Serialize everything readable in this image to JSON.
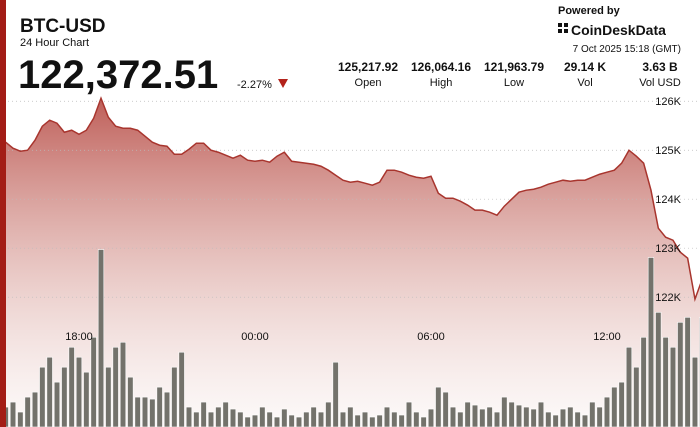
{
  "header": {
    "title": "BTC-USD",
    "subtitle": "24 Hour Chart",
    "price": "122,372.51",
    "change": "-2.27%",
    "powered_by": "Powered by",
    "brand": "CoinDeskData",
    "timestamp": "7 Oct 2025 15:18 (GMT)"
  },
  "stats": [
    {
      "value": "125,217.92",
      "label": "Open"
    },
    {
      "value": "126,064.16",
      "label": "High"
    },
    {
      "value": "121,963.79",
      "label": "Low"
    },
    {
      "value": "29.14 K",
      "label": "Vol"
    },
    {
      "value": "3.63 B",
      "label": "Vol USD"
    }
  ],
  "chart_data": {
    "type": "area",
    "color": "#a8352e",
    "categories": [
      null,
      null,
      null,
      null,
      null,
      null,
      null,
      null,
      null,
      null,
      "18:00",
      null,
      null,
      null,
      null,
      null,
      null,
      null,
      null,
      null,
      null,
      null,
      null,
      null,
      null,
      null,
      null,
      null,
      null,
      null,
      null,
      null,
      null,
      null,
      "00:00",
      null,
      null,
      null,
      null,
      null,
      null,
      null,
      null,
      null,
      null,
      null,
      null,
      null,
      null,
      null,
      null,
      null,
      null,
      null,
      null,
      null,
      null,
      null,
      "06:00",
      null,
      null,
      null,
      null,
      null,
      null,
      null,
      null,
      null,
      null,
      null,
      null,
      null,
      null,
      null,
      null,
      null,
      null,
      null,
      null,
      null,
      null,
      null,
      "12:00",
      null,
      null,
      null,
      null,
      null,
      null,
      null,
      null,
      null,
      null,
      null,
      null,
      null
    ],
    "values": [
      125163,
      125041,
      124980,
      125000,
      125204,
      125490,
      125612,
      125551,
      125367,
      125408,
      125326,
      125408,
      125653,
      126060,
      125673,
      125490,
      125449,
      125449,
      125408,
      125286,
      125163,
      125102,
      125082,
      124918,
      124918,
      125020,
      125143,
      125143,
      125000,
      124959,
      124898,
      124837,
      124898,
      124796,
      124775,
      124796,
      124755,
      124878,
      124959,
      124775,
      124755,
      124735,
      124714,
      124673,
      124592,
      124490,
      124388,
      124347,
      124367,
      124327,
      124286,
      124347,
      124592,
      124592,
      124551,
      124490,
      124449,
      124429,
      124469,
      124122,
      124020,
      124020,
      123959,
      123878,
      123776,
      123776,
      123735,
      123673,
      123857,
      124000,
      124143,
      124184,
      124204,
      124245,
      124306,
      124347,
      124388,
      124367,
      124388,
      124388,
      124449,
      124510,
      124551,
      124592,
      124735,
      125000,
      124878,
      124735,
      124184,
      123408,
      123224,
      123163,
      122918,
      122796,
      121960,
      122370
    ],
    "ylim": [
      119350,
      126270
    ],
    "yticks": [
      {
        "value": 122000,
        "label": "122K"
      },
      {
        "value": 123000,
        "label": "123K"
      },
      {
        "value": 124000,
        "label": "124K"
      },
      {
        "value": 125000,
        "label": "125K"
      },
      {
        "value": 126000,
        "label": "126K"
      }
    ],
    "grid": true,
    "volume": {
      "color": "#73726b",
      "ylim": [
        0,
        340
      ],
      "values": [
        20,
        25,
        15,
        30,
        35,
        60,
        70,
        45,
        60,
        80,
        70,
        55,
        90,
        178,
        60,
        80,
        85,
        50,
        30,
        30,
        28,
        40,
        35,
        60,
        75,
        20,
        15,
        25,
        15,
        20,
        25,
        18,
        15,
        10,
        12,
        20,
        15,
        10,
        18,
        12,
        10,
        15,
        20,
        15,
        25,
        65,
        15,
        20,
        12,
        15,
        10,
        12,
        20,
        15,
        12,
        25,
        15,
        10,
        18,
        40,
        35,
        20,
        15,
        25,
        22,
        18,
        20,
        15,
        30,
        25,
        22,
        20,
        18,
        25,
        15,
        12,
        18,
        20,
        15,
        12,
        25,
        20,
        30,
        40,
        45,
        80,
        60,
        90,
        170,
        115,
        90,
        80,
        105,
        110,
        70,
        110
      ]
    }
  }
}
